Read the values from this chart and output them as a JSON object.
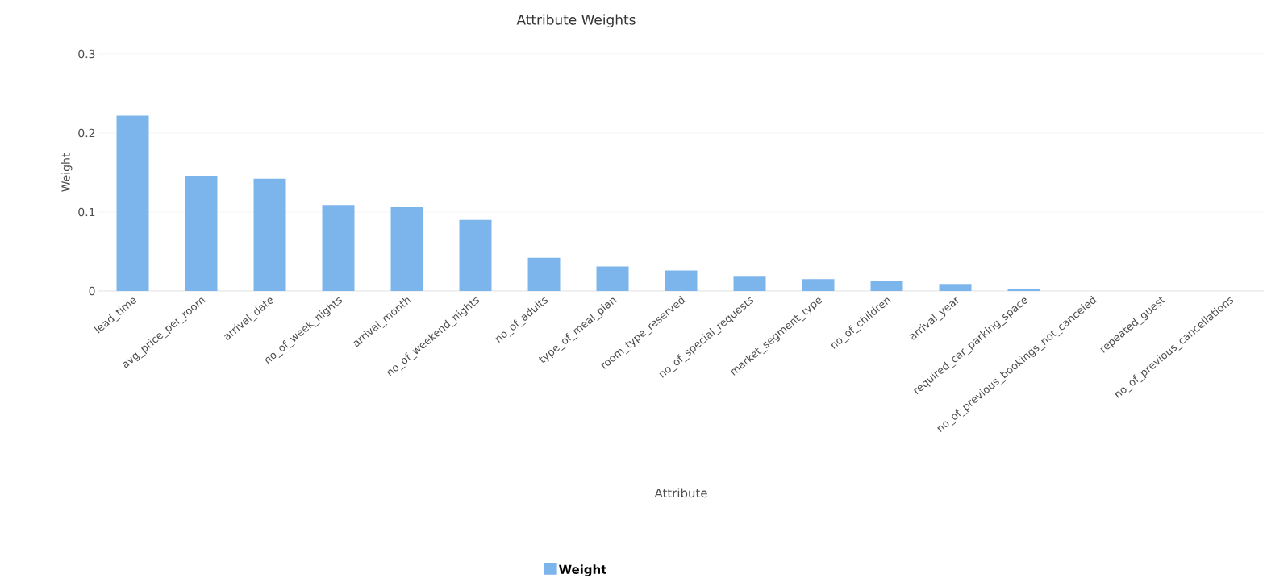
{
  "chart_data": {
    "type": "bar",
    "title": "Attribute Weights",
    "xlabel": "Attribute",
    "ylabel": "Weight",
    "categories": [
      "lead_time",
      "avg_price_per_room",
      "arrival_date",
      "no_of_week_nights",
      "arrival_month",
      "no_of_weekend_nights",
      "no_of_adults",
      "type_of_meal_plan",
      "room_type_reserved",
      "no_of_special_requests",
      "market_segment_type",
      "no_of_children",
      "arrival_year",
      "required_car_parking_space",
      "no_of_previous_bookings_not_canceled",
      "repeated_guest",
      "no_of_previous_cancellations"
    ],
    "series": [
      {
        "name": "Weight",
        "color": "#7cb5ec",
        "values": [
          0.222,
          0.146,
          0.142,
          0.109,
          0.106,
          0.09,
          0.042,
          0.031,
          0.026,
          0.019,
          0.015,
          0.013,
          0.009,
          0.003,
          0,
          0,
          0
        ]
      }
    ],
    "ylim": [
      0,
      0.3
    ],
    "yticks": [
      0,
      0.1,
      0.2,
      0.3
    ],
    "grid": "y",
    "legend": "bottom"
  }
}
